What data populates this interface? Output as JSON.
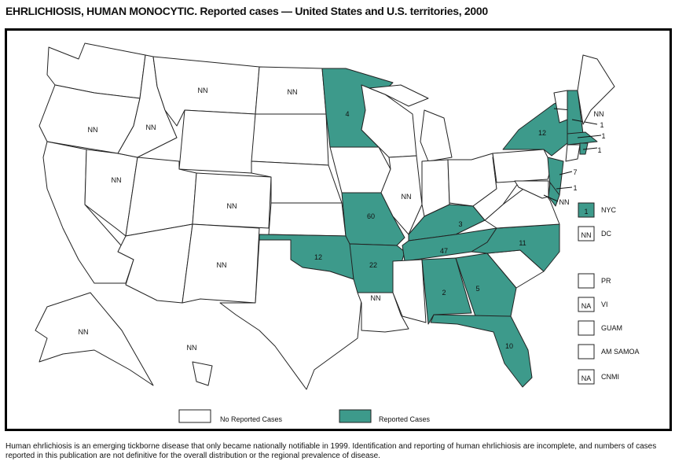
{
  "title": "EHRLICHIOSIS, HUMAN MONOCYTIC. Reported cases — United States and U.S. territories, 2000",
  "colors": {
    "reported": "#3d9a8b",
    "none": "#ffffff"
  },
  "states": [
    {
      "id": "WA",
      "label": "",
      "reported": false
    },
    {
      "id": "OR",
      "label": "NN",
      "reported": false
    },
    {
      "id": "CA",
      "label": "",
      "reported": false
    },
    {
      "id": "NV",
      "label": "NN",
      "reported": false
    },
    {
      "id": "ID",
      "label": "NN",
      "reported": false
    },
    {
      "id": "MT",
      "label": "NN",
      "reported": false
    },
    {
      "id": "WY",
      "label": "",
      "reported": false
    },
    {
      "id": "UT",
      "label": "",
      "reported": false
    },
    {
      "id": "CO",
      "label": "NN",
      "reported": false
    },
    {
      "id": "AZ",
      "label": "",
      "reported": false
    },
    {
      "id": "NM",
      "label": "NN",
      "reported": false
    },
    {
      "id": "ND",
      "label": "NN",
      "reported": false
    },
    {
      "id": "SD",
      "label": "",
      "reported": false
    },
    {
      "id": "NE",
      "label": "",
      "reported": false
    },
    {
      "id": "KS",
      "label": "",
      "reported": false
    },
    {
      "id": "OK",
      "label": "12",
      "reported": true
    },
    {
      "id": "TX",
      "label": "",
      "reported": false
    },
    {
      "id": "MN",
      "label": "4",
      "reported": true
    },
    {
      "id": "IA",
      "label": "",
      "reported": false
    },
    {
      "id": "MO",
      "label": "60",
      "reported": true
    },
    {
      "id": "AR",
      "label": "22",
      "reported": true
    },
    {
      "id": "LA",
      "label": "NN",
      "reported": false
    },
    {
      "id": "WI",
      "label": "",
      "reported": false
    },
    {
      "id": "IL",
      "label": "NN",
      "reported": false
    },
    {
      "id": "MI",
      "label": "",
      "reported": false
    },
    {
      "id": "IN",
      "label": "",
      "reported": false
    },
    {
      "id": "OH",
      "label": "",
      "reported": false
    },
    {
      "id": "KY",
      "label": "3",
      "reported": true
    },
    {
      "id": "TN",
      "label": "47",
      "reported": true
    },
    {
      "id": "MS",
      "label": "",
      "reported": false
    },
    {
      "id": "AL",
      "label": "2",
      "reported": true
    },
    {
      "id": "GA",
      "label": "5",
      "reported": true
    },
    {
      "id": "FL",
      "label": "10",
      "reported": true
    },
    {
      "id": "SC",
      "label": "",
      "reported": false
    },
    {
      "id": "NC",
      "label": "11",
      "reported": true
    },
    {
      "id": "VA",
      "label": "",
      "reported": false
    },
    {
      "id": "WV",
      "label": "",
      "reported": false
    },
    {
      "id": "PA",
      "label": "",
      "reported": false
    },
    {
      "id": "NY",
      "label": "12",
      "reported": true
    },
    {
      "id": "VT",
      "label": "NN",
      "reported": false
    },
    {
      "id": "NH",
      "label": "1",
      "reported": true
    },
    {
      "id": "ME",
      "label": "",
      "reported": false
    },
    {
      "id": "MA",
      "label": "1",
      "reported": true
    },
    {
      "id": "CT",
      "label": "",
      "reported": false
    },
    {
      "id": "RI",
      "label": "1",
      "reported": true
    },
    {
      "id": "NJ",
      "label": "7",
      "reported": true
    },
    {
      "id": "DE",
      "label": "1",
      "reported": true
    },
    {
      "id": "MD",
      "label": "NN",
      "reported": false
    },
    {
      "id": "AK",
      "label": "NN",
      "reported": false
    },
    {
      "id": "HI",
      "label": "NN",
      "reported": false
    }
  ],
  "territories": [
    {
      "name": "NYC",
      "value": "1",
      "reported": true
    },
    {
      "name": "DC",
      "value": "NN",
      "reported": false
    },
    {
      "name": "PR",
      "value": "",
      "reported": false
    },
    {
      "name": "VI",
      "value": "NA",
      "reported": false
    },
    {
      "name": "GUAM",
      "value": "",
      "reported": false
    },
    {
      "name": "AM SAMOA",
      "value": "",
      "reported": false
    },
    {
      "name": "CNMI",
      "value": "NA",
      "reported": false
    }
  ],
  "legend": {
    "none": "No Reported Cases",
    "reported": "Reported Cases"
  },
  "footnote": "Human ehrlichiosis is an emerging tickborne disease that only became nationally notifiable in 1999. Identification and reporting of human ehrlichiosis are incomplete, and numbers of cases reported in this publication are not definitive for the overall distribution or the regional prevalence of disease."
}
